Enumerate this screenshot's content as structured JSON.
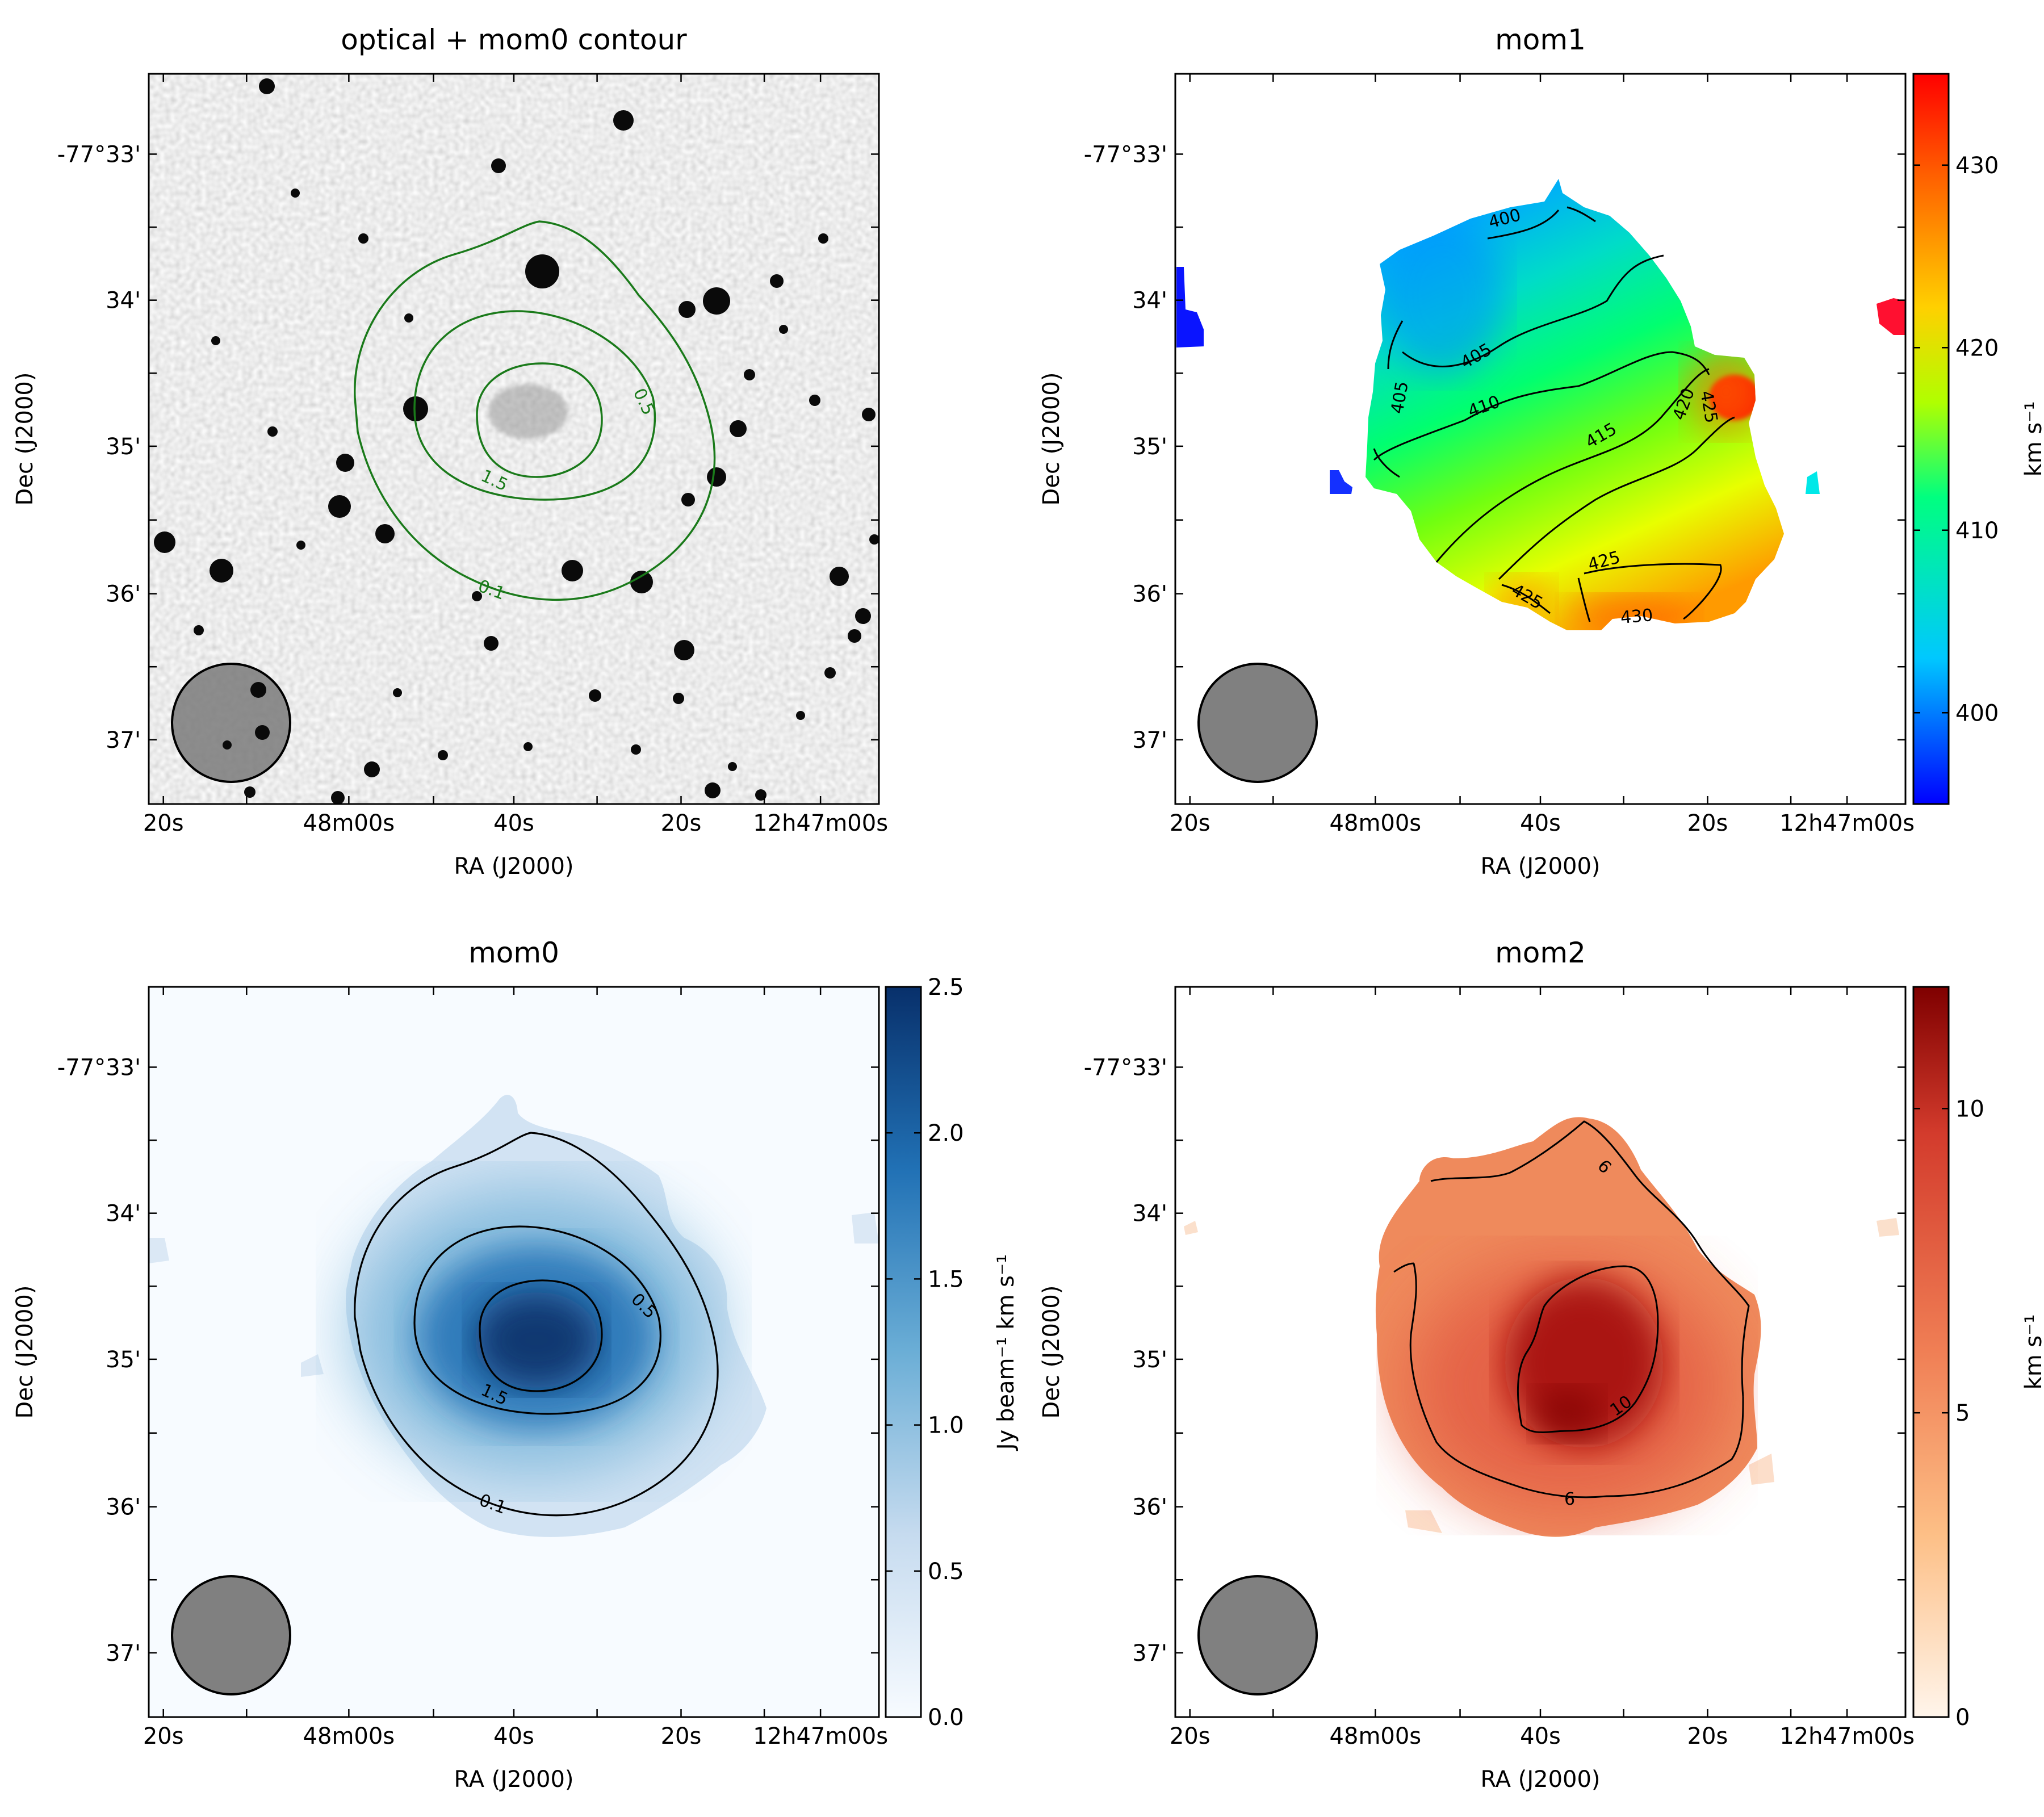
{
  "figure": {
    "panels": [
      {
        "id": "optical",
        "title": "optical + mom0 contour",
        "xlabel": "RA (J2000)",
        "ylabel": "Dec (J2000)",
        "xticks": [
          "20s",
          "48m00s",
          "40s",
          "20s",
          "12h47m00s"
        ],
        "yticks": [
          "-77°33'",
          "34'",
          "35'",
          "36'",
          "37'"
        ],
        "contour_labels": [
          "0.5",
          "1.5",
          "0.1"
        ],
        "contour_color": "#1a7a1a",
        "colorbar": null
      },
      {
        "id": "mom1",
        "title": "mom1",
        "xlabel": "RA (J2000)",
        "ylabel": "Dec (J2000)",
        "xticks": [
          "20s",
          "48m00s",
          "40s",
          "20s",
          "12h47m00s"
        ],
        "yticks": [
          "-77°33'",
          "34'",
          "35'",
          "36'",
          "37'"
        ],
        "contour_labels": [
          "400",
          "405",
          "405",
          "410",
          "415",
          "420",
          "425",
          "425",
          "425",
          "430"
        ],
        "contour_color": "#000000",
        "colorbar": {
          "label": "km s⁻¹",
          "ticks": [
            "400",
            "410",
            "420",
            "430"
          ],
          "range": [
            395,
            435
          ],
          "colormap": "jet",
          "colors": [
            "#0000ff",
            "#00c8ff",
            "#00ff80",
            "#b0ff00",
            "#ffd000",
            "#ff6000",
            "#ff0000"
          ]
        }
      },
      {
        "id": "mom0",
        "title": "mom0",
        "xlabel": "RA (J2000)",
        "ylabel": "Dec (J2000)",
        "xticks": [
          "20s",
          "48m00s",
          "40s",
          "20s",
          "12h47m00s"
        ],
        "yticks": [
          "-77°33'",
          "34'",
          "35'",
          "36'",
          "37'"
        ],
        "contour_labels": [
          "0.5",
          "1.5",
          "0.1"
        ],
        "contour_color": "#000000",
        "colorbar": {
          "label": "Jy beam⁻¹ km s⁻¹",
          "ticks": [
            "0.0",
            "0.5",
            "1.0",
            "1.5",
            "2.0",
            "2.5"
          ],
          "range": [
            0,
            2.5
          ],
          "colormap": "Blues",
          "colors": [
            "#f7fbff",
            "#c6dbef",
            "#6baed6",
            "#2171b5",
            "#08306b"
          ]
        }
      },
      {
        "id": "mom2",
        "title": "mom2",
        "xlabel": "RA (J2000)",
        "ylabel": "Dec (J2000)",
        "xticks": [
          "20s",
          "48m00s",
          "40s",
          "20s",
          "12h47m00s"
        ],
        "yticks": [
          "-77°33'",
          "34'",
          "35'",
          "36'",
          "37'"
        ],
        "contour_labels": [
          "6",
          "10",
          "6"
        ],
        "contour_color": "#000000",
        "colorbar": {
          "label": "km s⁻¹",
          "ticks": [
            "0",
            "5",
            "10"
          ],
          "range": [
            0,
            12
          ],
          "colormap": "OrRd",
          "colors": [
            "#fff5eb",
            "#fdbf86",
            "#f07f55",
            "#d33b2c",
            "#7f0000"
          ]
        }
      }
    ]
  },
  "chart_data": [
    {
      "type": "heatmap",
      "title": "optical + mom0 contour",
      "xlabel": "RA (J2000)",
      "ylabel": "Dec (J2000)",
      "x_ticks": [
        "20s",
        "48m00s",
        "40s",
        "20s",
        "12h47m00s"
      ],
      "y_ticks": [
        "-77°33'",
        "34'",
        "35'",
        "36'",
        "37'"
      ],
      "contour_levels": [
        0.1,
        0.5,
        1.5
      ],
      "grid": false
    },
    {
      "type": "heatmap",
      "title": "mom1",
      "xlabel": "RA (J2000)",
      "ylabel": "Dec (J2000)",
      "x_ticks": [
        "20s",
        "48m00s",
        "40s",
        "20s",
        "12h47m00s"
      ],
      "y_ticks": [
        "-77°33'",
        "34'",
        "35'",
        "36'",
        "37'"
      ],
      "contour_levels": [
        400,
        405,
        410,
        415,
        420,
        425,
        430
      ],
      "colorbar_label": "km s⁻¹",
      "colorbar_ticks": [
        400,
        410,
        420,
        430
      ],
      "value_range": [
        395,
        435
      ],
      "grid": false
    },
    {
      "type": "heatmap",
      "title": "mom0",
      "xlabel": "RA (J2000)",
      "ylabel": "Dec (J2000)",
      "x_ticks": [
        "20s",
        "48m00s",
        "40s",
        "20s",
        "12h47m00s"
      ],
      "y_ticks": [
        "-77°33'",
        "34'",
        "35'",
        "36'",
        "37'"
      ],
      "contour_levels": [
        0.1,
        0.5,
        1.5
      ],
      "colorbar_label": "Jy beam⁻¹ km s⁻¹",
      "colorbar_ticks": [
        0.0,
        0.5,
        1.0,
        1.5,
        2.0,
        2.5
      ],
      "value_range": [
        0,
        2.5
      ],
      "grid": false
    },
    {
      "type": "heatmap",
      "title": "mom2",
      "xlabel": "RA (J2000)",
      "ylabel": "Dec (J2000)",
      "x_ticks": [
        "20s",
        "48m00s",
        "40s",
        "20s",
        "12h47m00s"
      ],
      "y_ticks": [
        "-77°33'",
        "34'",
        "35'",
        "36'",
        "37'"
      ],
      "contour_levels": [
        6,
        10
      ],
      "colorbar_label": "km s⁻¹",
      "colorbar_ticks": [
        0,
        5,
        10
      ],
      "value_range": [
        0,
        12
      ],
      "grid": false
    }
  ]
}
